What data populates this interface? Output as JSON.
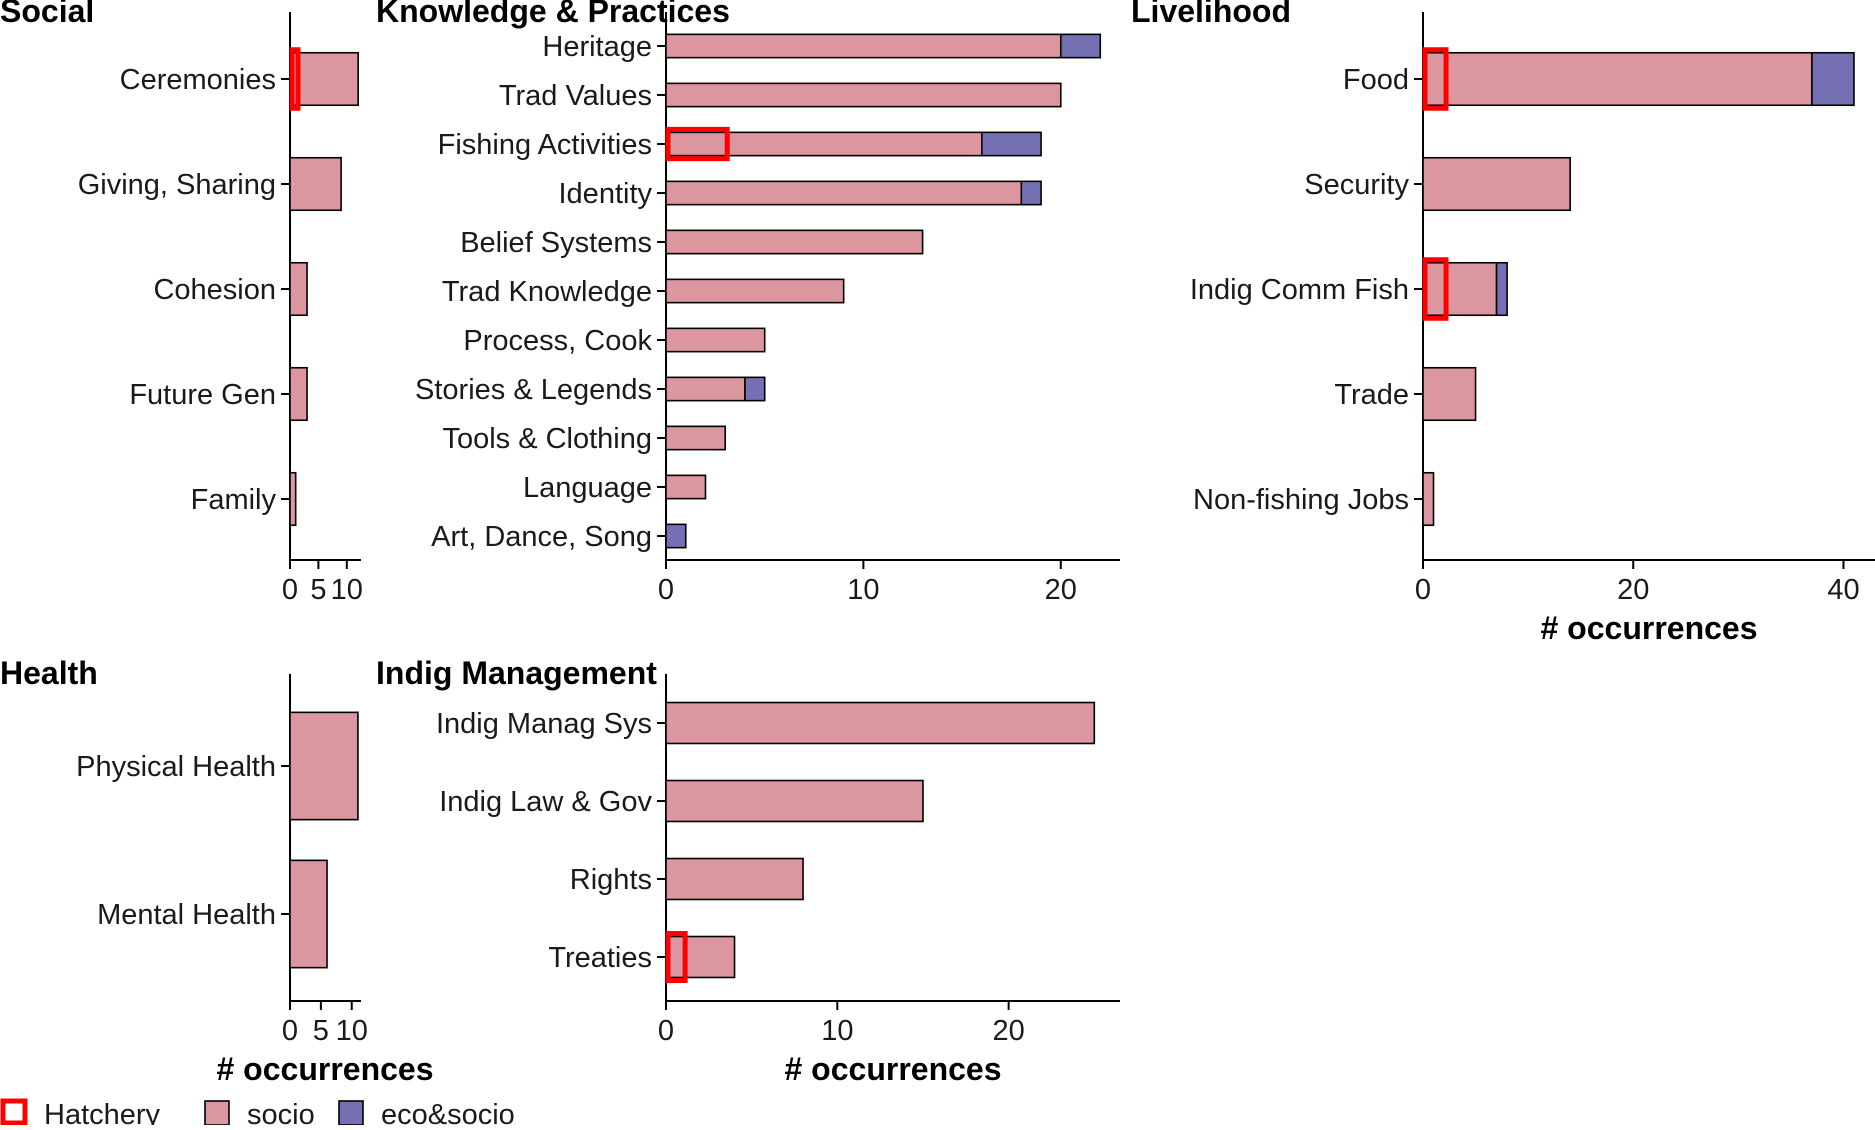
{
  "colors": {
    "socio": "#DC969F",
    "eco_socio": "#7570B3",
    "hatchery": "#FF0000"
  },
  "legend": {
    "hatchery_label": "Hatchery",
    "socio_label": "socio",
    "eco_socio_label": "eco&socio"
  },
  "chart_data": [
    {
      "type": "bar",
      "orientation": "horizontal",
      "stacked": true,
      "title": "Social",
      "xlabel": "",
      "categories": [
        "Ceremonies",
        "Giving, Sharing",
        "Cohesion",
        "Future Gen",
        "Family"
      ],
      "series": [
        {
          "name": "socio",
          "values": [
            12,
            9,
            3,
            3,
            1
          ]
        },
        {
          "name": "eco&socio",
          "values": [
            0,
            0,
            0,
            0,
            0
          ]
        }
      ],
      "hatchery": [
        1,
        0,
        0,
        0,
        0
      ],
      "xlim": [
        0,
        12.5
      ],
      "xticks": [
        0,
        5,
        10
      ],
      "xtick_labels": [
        "0",
        "5",
        "10"
      ]
    },
    {
      "type": "bar",
      "orientation": "horizontal",
      "stacked": true,
      "title": "Knowledge & Practices",
      "xlabel": "",
      "categories": [
        "Heritage",
        "Trad Values",
        "Fishing Activities",
        "Identity",
        "Belief Systems",
        "Trad Knowledge",
        "Process, Cook",
        "Stories & Legends",
        "Tools & Clothing",
        "Language",
        "Art, Dance, Song"
      ],
      "series": [
        {
          "name": "socio",
          "values": [
            20,
            20,
            16,
            18,
            13,
            9,
            5,
            4,
            3,
            2,
            0
          ]
        },
        {
          "name": "eco&socio",
          "values": [
            2,
            0,
            3,
            1,
            0,
            0,
            0,
            1,
            0,
            0,
            1
          ]
        }
      ],
      "hatchery": [
        0,
        0,
        3,
        0,
        0,
        0,
        0,
        0,
        0,
        0,
        0
      ],
      "xlim": [
        0,
        23
      ],
      "xticks": [
        0,
        10,
        20
      ],
      "xtick_labels": [
        "0",
        "10",
        "20"
      ]
    },
    {
      "type": "bar",
      "orientation": "horizontal",
      "stacked": true,
      "title": "Livelihood",
      "xlabel": "# occurrences",
      "categories": [
        "Food",
        "Security",
        "Indig Comm Fish",
        "Trade",
        "Non-fishing Jobs"
      ],
      "series": [
        {
          "name": "socio",
          "values": [
            37,
            14,
            7,
            5,
            1
          ]
        },
        {
          "name": "eco&socio",
          "values": [
            4,
            0,
            1,
            0,
            0
          ]
        }
      ],
      "hatchery": [
        2,
        0,
        2,
        0,
        0
      ],
      "xlim": [
        0,
        43
      ],
      "xticks": [
        0,
        20,
        40
      ],
      "xtick_labels": [
        "0",
        "20",
        "40"
      ]
    },
    {
      "type": "bar",
      "orientation": "horizontal",
      "stacked": true,
      "title": "Health",
      "xlabel": "# occurrences",
      "categories": [
        "Physical Health",
        "Mental Health"
      ],
      "series": [
        {
          "name": "socio",
          "values": [
            11,
            6
          ]
        },
        {
          "name": "eco&socio",
          "values": [
            0,
            0
          ]
        }
      ],
      "hatchery": [
        0,
        0
      ],
      "xlim": [
        0,
        11.5
      ],
      "xticks": [
        0,
        5,
        10
      ],
      "xtick_labels": [
        "0",
        "5",
        "10"
      ]
    },
    {
      "type": "bar",
      "orientation": "horizontal",
      "stacked": true,
      "title": "Indig Management",
      "xlabel": "# occurrences",
      "categories": [
        "Indig Manag Sys",
        "Indig Law & Gov",
        "Rights",
        "Treaties"
      ],
      "series": [
        {
          "name": "socio",
          "values": [
            25,
            15,
            8,
            4
          ]
        },
        {
          "name": "eco&socio",
          "values": [
            0,
            0,
            0,
            0
          ]
        }
      ],
      "hatchery": [
        0,
        0,
        0,
        1
      ],
      "xlim": [
        0,
        26.5
      ],
      "xticks": [
        0,
        10,
        20
      ],
      "xtick_labels": [
        "0",
        "10",
        "20"
      ]
    }
  ]
}
